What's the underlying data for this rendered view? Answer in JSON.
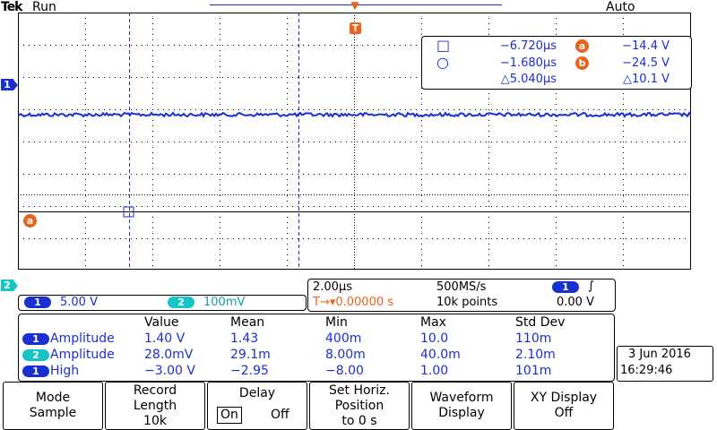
{
  "top": {
    "brand": "Tek",
    "status": "Run",
    "trigger_mode": "Auto",
    "trigger_marker": "T"
  },
  "markers": {
    "ch1": "1",
    "ch2": "2",
    "cursor_a": "a"
  },
  "cursors": {
    "square_time": "−6.720µs",
    "circle_time": "−1.680µs",
    "delta_time": "△5.040µs",
    "a_label": "a",
    "b_label": "b",
    "a_volt": "−14.4 V",
    "b_volt": "−24.5 V",
    "delta_volt": "△10.1 V",
    "square_icon": "□",
    "circle_icon": "○"
  },
  "channels": {
    "ch1_num": "1",
    "ch1_scale": "5.00 V",
    "ch2_num": "2",
    "ch2_scale": "100mV",
    "colors": {
      "ch1": "#1a2fd0",
      "ch2": "#16c5c5",
      "math": "#e8641a"
    }
  },
  "horizontal": {
    "time_div": "2.00µs",
    "sample_rate": "500MS/s",
    "trig_source": "1",
    "trig_slope_icon": "∫",
    "trig_pos": "T→▾0.00000 s",
    "record": "10k points",
    "trig_level": "0.00 V"
  },
  "measurements": {
    "headers": [
      "Value",
      "Mean",
      "Min",
      "Max",
      "Std Dev"
    ],
    "rows": [
      {
        "src": "1",
        "name": "Amplitude",
        "value": "1.40 V",
        "mean": "1.43",
        "min": "400m",
        "max": "10.0",
        "std": "110m"
      },
      {
        "src": "2",
        "name": "Amplitude",
        "value": "28.0mV",
        "mean": "29.1m",
        "min": "8.00m",
        "max": "40.0m",
        "std": "2.10m"
      },
      {
        "src": "1",
        "name": "High",
        "value": "−3.00 V",
        "mean": "−2.95",
        "min": "−8.00",
        "max": "1.00",
        "std": "101m"
      }
    ]
  },
  "datetime": {
    "date": "3 Jun 2016",
    "time": "16:29:46"
  },
  "softkeys": {
    "mode_l1": "Mode",
    "mode_l2": "Sample",
    "record_l1": "Record",
    "record_l2": "Length",
    "record_l3": "10k",
    "delay_l1": "Delay",
    "delay_on": "On",
    "delay_off": "Off",
    "horiz_l1": "Set Horiz.",
    "horiz_l2": "Position",
    "horiz_l3": "to 0 s",
    "wave_l1": "Waveform",
    "wave_l2": "Display",
    "xy_l1": "XY Display",
    "xy_l2": "Off"
  }
}
